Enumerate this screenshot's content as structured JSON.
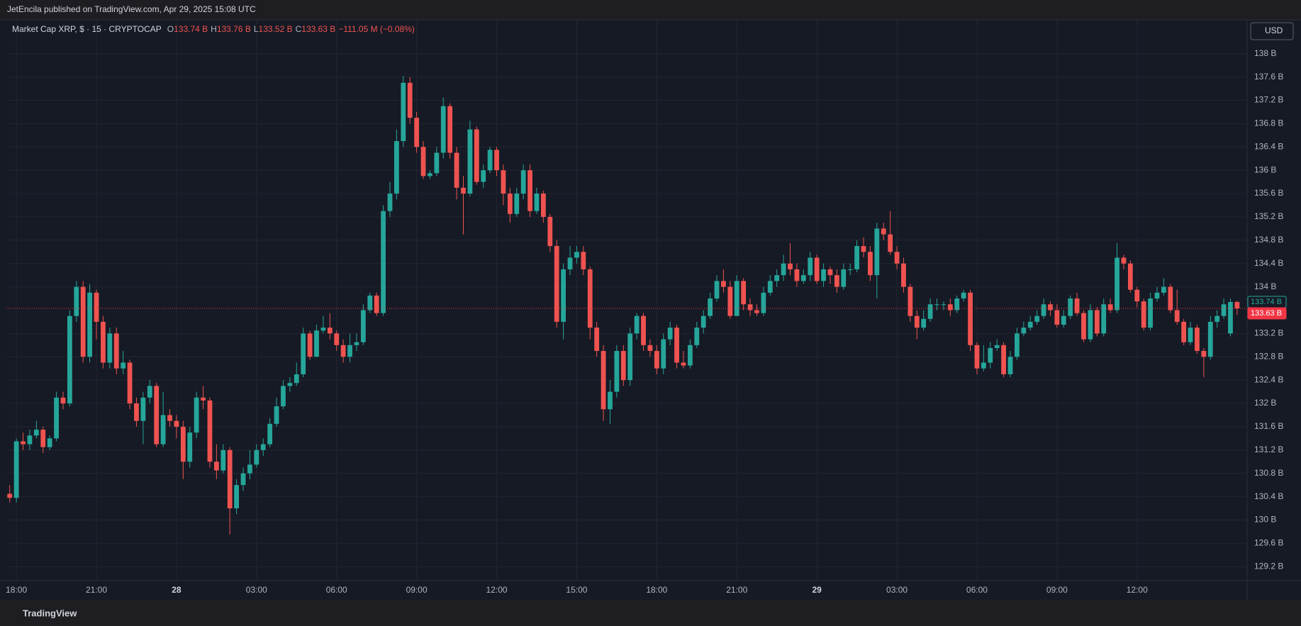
{
  "chart_data": {
    "type": "candlestick",
    "header": "JetEncila published on TradingView.com, Apr 29, 2025 15:08 UTC",
    "footer": "TradingView",
    "currency_button": "USD",
    "legend": {
      "symbol": "Market Cap XRP, $ · 15 · CRYPTOCAP",
      "items": [
        {
          "key": "O",
          "text": "133.74 B"
        },
        {
          "key": "H",
          "text": "133.76 B"
        },
        {
          "key": "L",
          "text": "133.52 B"
        },
        {
          "key": "C",
          "text": "133.63 B"
        }
      ],
      "change": "−111.05 M (−0.08%)"
    },
    "up_color": "#26a69a",
    "down_color": "#ef5350",
    "grid": true,
    "ylim": [
      128.96,
      138.58
    ],
    "yticks": [
      {
        "value": 129.2,
        "label": "129.2 B"
      },
      {
        "value": 129.6,
        "label": "129.6 B"
      },
      {
        "value": 130,
        "label": "130 B"
      },
      {
        "value": 130.4,
        "label": "130.4 B"
      },
      {
        "value": 130.8,
        "label": "130.8 B"
      },
      {
        "value": 131.2,
        "label": "131.2 B"
      },
      {
        "value": 131.6,
        "label": "131.6 B"
      },
      {
        "value": 132,
        "label": "132 B"
      },
      {
        "value": 132.4,
        "label": "132.4 B"
      },
      {
        "value": 132.8,
        "label": "132.8 B"
      },
      {
        "value": 133.2,
        "label": "133.2 B"
      },
      {
        "value": 134,
        "label": "134 B"
      },
      {
        "value": 134.4,
        "label": "134.4 B"
      },
      {
        "value": 134.8,
        "label": "134.8 B"
      },
      {
        "value": 135.2,
        "label": "135.2 B"
      },
      {
        "value": 135.6,
        "label": "135.6 B"
      },
      {
        "value": 136,
        "label": "136 B"
      },
      {
        "value": 136.4,
        "label": "136.4 B"
      },
      {
        "value": 136.8,
        "label": "136.8 B"
      },
      {
        "value": 137.2,
        "label": "137.2 B"
      },
      {
        "value": 137.6,
        "label": "137.6 B"
      },
      {
        "value": 138,
        "label": "138 B"
      }
    ],
    "xlim": [
      -0.5,
      185.5
    ],
    "xticks": [
      {
        "value": 1,
        "label": "18:00"
      },
      {
        "value": 13,
        "label": "21:00"
      },
      {
        "value": 25,
        "label": "28"
      },
      {
        "value": 37,
        "label": "03:00"
      },
      {
        "value": 49,
        "label": "06:00"
      },
      {
        "value": 61,
        "label": "09:00"
      },
      {
        "value": 73,
        "label": "12:00"
      },
      {
        "value": 85,
        "label": "15:00"
      },
      {
        "value": 97,
        "label": "18:00"
      },
      {
        "value": 109,
        "label": "21:00"
      },
      {
        "value": 121,
        "label": "29"
      },
      {
        "value": 133,
        "label": "03:00"
      },
      {
        "value": 145,
        "label": "06:00"
      },
      {
        "value": 157,
        "label": "09:00"
      },
      {
        "value": 169,
        "label": "12:00"
      }
    ],
    "price_tags": [
      {
        "value": 133.74,
        "label": "133.74 B",
        "color": "#26a69a"
      },
      {
        "value": 133.63,
        "label": "133.63 B",
        "color": "#f23645"
      }
    ],
    "ohlc": [
      [
        130.45,
        130.6,
        130.3,
        130.38
      ],
      [
        130.38,
        131.4,
        130.3,
        131.35
      ],
      [
        131.35,
        131.5,
        131.2,
        131.3
      ],
      [
        131.3,
        131.55,
        131.2,
        131.45
      ],
      [
        131.45,
        131.7,
        131.4,
        131.55
      ],
      [
        131.55,
        131.6,
        131.15,
        131.25
      ],
      [
        131.25,
        131.45,
        131.2,
        131.4
      ],
      [
        131.4,
        132.2,
        131.35,
        132.1
      ],
      [
        132.1,
        132.2,
        131.9,
        132.0
      ],
      [
        132.0,
        133.6,
        131.95,
        133.5
      ],
      [
        133.5,
        134.1,
        133.4,
        134.0
      ],
      [
        134.0,
        134.1,
        132.7,
        132.8
      ],
      [
        132.8,
        134.05,
        132.7,
        133.9
      ],
      [
        133.9,
        133.95,
        133.1,
        133.4
      ],
      [
        133.4,
        133.5,
        132.6,
        132.7
      ],
      [
        132.7,
        133.3,
        132.6,
        133.2
      ],
      [
        133.2,
        133.3,
        132.5,
        132.6
      ],
      [
        132.6,
        132.9,
        132.5,
        132.7
      ],
      [
        132.7,
        132.75,
        131.9,
        132.0
      ],
      [
        132.0,
        132.1,
        131.6,
        131.7
      ],
      [
        131.7,
        132.2,
        131.3,
        132.1
      ],
      [
        132.1,
        132.4,
        132.0,
        132.3
      ],
      [
        132.3,
        132.35,
        131.25,
        131.3
      ],
      [
        131.3,
        132.2,
        131.25,
        131.8
      ],
      [
        131.8,
        131.9,
        131.6,
        131.7
      ],
      [
        131.7,
        131.8,
        131.4,
        131.6
      ],
      [
        131.6,
        131.7,
        130.7,
        131.0
      ],
      [
        131.0,
        131.6,
        130.9,
        131.5
      ],
      [
        131.5,
        132.2,
        131.4,
        132.1
      ],
      [
        132.1,
        132.3,
        131.9,
        132.05
      ],
      [
        132.05,
        132.1,
        130.9,
        131.0
      ],
      [
        131.0,
        131.3,
        130.7,
        130.85
      ],
      [
        130.85,
        131.3,
        130.8,
        131.2
      ],
      [
        131.2,
        131.25,
        129.75,
        130.2
      ],
      [
        130.2,
        130.7,
        130.1,
        130.6
      ],
      [
        130.6,
        130.9,
        130.5,
        130.8
      ],
      [
        130.8,
        131.2,
        130.7,
        130.95
      ],
      [
        130.95,
        131.3,
        130.9,
        131.2
      ],
      [
        131.2,
        131.4,
        131.1,
        131.3
      ],
      [
        131.3,
        131.75,
        131.25,
        131.65
      ],
      [
        131.65,
        132.1,
        131.6,
        131.95
      ],
      [
        131.95,
        132.4,
        131.9,
        132.3
      ],
      [
        132.3,
        132.45,
        132.2,
        132.35
      ],
      [
        132.35,
        132.7,
        132.3,
        132.5
      ],
      [
        132.5,
        133.3,
        132.45,
        133.2
      ],
      [
        133.2,
        133.25,
        132.75,
        132.8
      ],
      [
        132.8,
        133.35,
        132.8,
        133.25
      ],
      [
        133.25,
        133.5,
        133.2,
        133.3
      ],
      [
        133.3,
        133.55,
        133.1,
        133.2
      ],
      [
        133.2,
        133.25,
        132.9,
        133.0
      ],
      [
        133.0,
        133.1,
        132.7,
        132.8
      ],
      [
        132.8,
        133.2,
        132.7,
        133.0
      ],
      [
        133.0,
        133.2,
        132.9,
        133.05
      ],
      [
        133.05,
        133.7,
        133.0,
        133.6
      ],
      [
        133.6,
        133.9,
        133.55,
        133.85
      ],
      [
        133.85,
        133.9,
        133.5,
        133.55
      ],
      [
        133.55,
        135.4,
        133.5,
        135.3
      ],
      [
        135.3,
        135.8,
        135.2,
        135.6
      ],
      [
        135.6,
        136.7,
        135.5,
        136.5
      ],
      [
        136.5,
        137.62,
        136.4,
        137.5
      ],
      [
        137.5,
        137.6,
        136.8,
        136.9
      ],
      [
        136.9,
        137.0,
        136.3,
        136.4
      ],
      [
        136.4,
        136.5,
        135.85,
        135.9
      ],
      [
        135.9,
        136.0,
        135.85,
        135.95
      ],
      [
        135.95,
        136.4,
        135.9,
        136.3
      ],
      [
        136.3,
        137.25,
        136.2,
        137.1
      ],
      [
        137.1,
        137.15,
        136.2,
        136.3
      ],
      [
        136.3,
        136.4,
        135.5,
        135.7
      ],
      [
        135.7,
        135.9,
        134.9,
        135.6
      ],
      [
        135.6,
        136.85,
        135.55,
        136.7
      ],
      [
        136.7,
        136.75,
        135.75,
        135.8
      ],
      [
        135.8,
        136.1,
        135.7,
        136.0
      ],
      [
        136.0,
        136.4,
        135.95,
        136.35
      ],
      [
        136.35,
        136.4,
        135.9,
        136.0
      ],
      [
        136.0,
        136.1,
        135.4,
        135.6
      ],
      [
        135.6,
        135.7,
        135.1,
        135.25
      ],
      [
        135.25,
        135.7,
        135.2,
        135.6
      ],
      [
        135.6,
        136.1,
        135.5,
        136.0
      ],
      [
        136.0,
        136.1,
        135.2,
        135.3
      ],
      [
        135.3,
        135.7,
        135.25,
        135.6
      ],
      [
        135.6,
        135.65,
        135.1,
        135.2
      ],
      [
        135.2,
        135.25,
        134.6,
        134.7
      ],
      [
        134.7,
        134.8,
        133.3,
        133.4
      ],
      [
        133.4,
        134.4,
        133.1,
        134.3
      ],
      [
        134.3,
        134.7,
        134.2,
        134.5
      ],
      [
        134.5,
        134.7,
        134.4,
        134.6
      ],
      [
        134.6,
        134.7,
        134.2,
        134.3
      ],
      [
        134.3,
        134.35,
        133.1,
        133.3
      ],
      [
        133.3,
        133.4,
        132.8,
        132.9
      ],
      [
        132.9,
        133.0,
        131.7,
        131.9
      ],
      [
        131.9,
        132.4,
        131.65,
        132.2
      ],
      [
        132.2,
        133.0,
        132.1,
        132.9
      ],
      [
        132.9,
        133.0,
        132.3,
        132.4
      ],
      [
        132.4,
        133.3,
        132.3,
        133.2
      ],
      [
        133.2,
        133.55,
        133.1,
        133.5
      ],
      [
        133.5,
        133.55,
        132.9,
        133.0
      ],
      [
        133.0,
        133.1,
        132.8,
        132.9
      ],
      [
        132.9,
        133.0,
        132.5,
        132.6
      ],
      [
        132.6,
        133.2,
        132.5,
        133.1
      ],
      [
        133.1,
        133.4,
        133.0,
        133.3
      ],
      [
        133.3,
        133.35,
        132.6,
        132.7
      ],
      [
        132.7,
        132.9,
        132.6,
        132.65
      ],
      [
        132.65,
        133.1,
        132.6,
        133.0
      ],
      [
        133.0,
        133.4,
        132.95,
        133.3
      ],
      [
        133.3,
        133.6,
        133.2,
        133.5
      ],
      [
        133.5,
        133.9,
        133.45,
        133.8
      ],
      [
        133.8,
        134.2,
        133.75,
        134.1
      ],
      [
        134.1,
        134.3,
        133.9,
        134.0
      ],
      [
        134.0,
        134.1,
        133.45,
        133.5
      ],
      [
        133.5,
        134.2,
        133.5,
        134.1
      ],
      [
        134.1,
        134.15,
        133.6,
        133.7
      ],
      [
        133.7,
        133.8,
        133.5,
        133.6
      ],
      [
        133.6,
        133.7,
        133.5,
        133.55
      ],
      [
        133.55,
        134.0,
        133.5,
        133.9
      ],
      [
        133.9,
        134.2,
        133.85,
        134.1
      ],
      [
        134.1,
        134.3,
        134.0,
        134.2
      ],
      [
        134.2,
        134.55,
        134.1,
        134.4
      ],
      [
        134.4,
        134.75,
        134.2,
        134.3
      ],
      [
        134.3,
        134.4,
        134.0,
        134.1
      ],
      [
        134.1,
        134.3,
        134.05,
        134.2
      ],
      [
        134.2,
        134.6,
        134.1,
        134.5
      ],
      [
        134.5,
        134.55,
        134.05,
        134.1
      ],
      [
        134.1,
        134.4,
        134.0,
        134.3
      ],
      [
        134.3,
        134.35,
        134.05,
        134.2
      ],
      [
        134.2,
        134.3,
        133.9,
        134.0
      ],
      [
        134.0,
        134.4,
        133.95,
        134.3
      ],
      [
        134.3,
        134.4,
        134.2,
        134.3
      ],
      [
        134.3,
        134.8,
        134.25,
        134.7
      ],
      [
        134.7,
        134.85,
        134.5,
        134.6
      ],
      [
        134.6,
        134.7,
        134.1,
        134.2
      ],
      [
        134.2,
        135.1,
        133.8,
        135.0
      ],
      [
        135.0,
        135.1,
        134.8,
        134.9
      ],
      [
        134.9,
        135.3,
        134.55,
        134.6
      ],
      [
        134.6,
        134.7,
        134.3,
        134.4
      ],
      [
        134.4,
        134.5,
        133.9,
        134.0
      ],
      [
        134.0,
        134.05,
        133.4,
        133.5
      ],
      [
        133.5,
        133.6,
        133.1,
        133.3
      ],
      [
        133.3,
        133.6,
        133.25,
        133.45
      ],
      [
        133.45,
        133.8,
        133.4,
        133.7
      ],
      [
        133.7,
        133.8,
        133.6,
        133.7
      ],
      [
        133.7,
        133.75,
        133.6,
        133.7
      ],
      [
        133.7,
        133.8,
        133.5,
        133.6
      ],
      [
        133.6,
        133.85,
        133.55,
        133.8
      ],
      [
        133.8,
        133.95,
        133.75,
        133.9
      ],
      [
        133.9,
        133.95,
        132.9,
        133.0
      ],
      [
        133.0,
        133.05,
        132.5,
        132.6
      ],
      [
        132.6,
        133.0,
        132.55,
        132.7
      ],
      [
        132.7,
        133.05,
        132.6,
        132.95
      ],
      [
        132.95,
        133.1,
        132.9,
        133.0
      ],
      [
        133.0,
        133.05,
        132.45,
        132.5
      ],
      [
        132.5,
        132.9,
        132.45,
        132.8
      ],
      [
        132.8,
        133.3,
        132.75,
        133.2
      ],
      [
        133.2,
        133.4,
        133.15,
        133.3
      ],
      [
        133.3,
        133.5,
        133.25,
        133.4
      ],
      [
        133.4,
        133.6,
        133.35,
        133.5
      ],
      [
        133.5,
        133.8,
        133.45,
        133.7
      ],
      [
        133.7,
        133.75,
        133.5,
        133.6
      ],
      [
        133.6,
        133.7,
        133.3,
        133.35
      ],
      [
        133.35,
        133.6,
        133.3,
        133.5
      ],
      [
        133.5,
        133.85,
        133.45,
        133.8
      ],
      [
        133.8,
        133.9,
        133.5,
        133.55
      ],
      [
        133.55,
        133.6,
        133.05,
        133.1
      ],
      [
        133.1,
        133.7,
        133.05,
        133.6
      ],
      [
        133.6,
        133.65,
        133.15,
        133.2
      ],
      [
        133.2,
        133.8,
        133.15,
        133.7
      ],
      [
        133.7,
        133.8,
        133.55,
        133.6
      ],
      [
        133.6,
        134.75,
        133.55,
        134.5
      ],
      [
        134.5,
        134.55,
        134.3,
        134.4
      ],
      [
        134.4,
        134.45,
        133.9,
        133.95
      ],
      [
        133.95,
        134.0,
        133.65,
        133.75
      ],
      [
        133.75,
        133.8,
        133.25,
        133.3
      ],
      [
        133.3,
        133.9,
        133.25,
        133.8
      ],
      [
        133.8,
        134.0,
        133.75,
        133.9
      ],
      [
        133.9,
        134.15,
        133.85,
        134.0
      ],
      [
        134.0,
        134.05,
        133.55,
        133.6
      ],
      [
        133.6,
        133.95,
        133.35,
        133.4
      ],
      [
        133.4,
        133.45,
        133.0,
        133.05
      ],
      [
        133.05,
        133.4,
        133.0,
        133.3
      ],
      [
        133.3,
        133.35,
        132.85,
        132.9
      ],
      [
        132.9,
        132.95,
        132.45,
        132.8
      ],
      [
        132.8,
        133.5,
        132.75,
        133.4
      ],
      [
        133.4,
        133.6,
        133.3,
        133.5
      ],
      [
        133.5,
        133.8,
        133.45,
        133.7
      ],
      [
        133.2,
        133.8,
        133.15,
        133.74
      ],
      [
        133.74,
        133.76,
        133.52,
        133.63
      ]
    ]
  }
}
